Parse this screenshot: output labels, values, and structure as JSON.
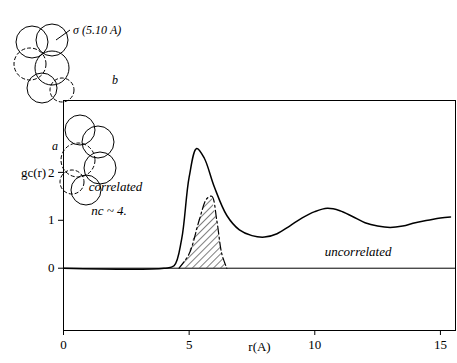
{
  "chart_data": {
    "type": "line",
    "xlabel": "r(A)",
    "ylabel": "gc(r)",
    "xlim": [
      0,
      15.6
    ],
    "ylim": [
      -1.3,
      3.5
    ],
    "xticks": [
      0,
      5,
      10,
      15
    ],
    "yticks": [
      0,
      1,
      2
    ],
    "series": [
      {
        "color": "#000000",
        "line_style": "solid",
        "x": [
          0,
          4.0,
          4.4,
          4.7,
          5.0,
          5.3,
          5.6,
          6.0,
          6.5,
          7.0,
          7.5,
          8.0,
          8.5,
          9.0,
          9.5,
          10.0,
          10.5,
          11.0,
          11.5,
          12.0,
          12.5,
          13.0,
          13.5,
          14.0,
          14.5,
          15.0,
          15.4
        ],
        "values": [
          0,
          0,
          0.05,
          0.6,
          1.9,
          2.5,
          2.3,
          1.7,
          1.1,
          0.8,
          0.68,
          0.65,
          0.72,
          0.88,
          1.05,
          1.18,
          1.25,
          1.2,
          1.08,
          0.95,
          0.88,
          0.85,
          0.88,
          0.95,
          1.0,
          1.05,
          1.07
        ]
      },
      {
        "color": "#000000",
        "line_style": "dashdot",
        "x": [
          4.6,
          5.0,
          5.4,
          5.7,
          5.9,
          6.1,
          6.3,
          6.5
        ],
        "values": [
          0,
          0.3,
          1.0,
          1.45,
          1.5,
          1.0,
          0.3,
          0
        ]
      }
    ],
    "annotations": [
      {
        "text": "correlated"
      },
      {
        "text": "nc ~ 4."
      },
      {
        "text": "uncorrelated"
      }
    ],
    "molecule_labels": [
      "σ (5.10 A)",
      "b",
      "a"
    ]
  }
}
